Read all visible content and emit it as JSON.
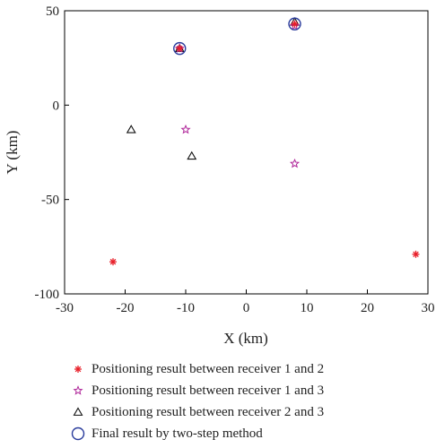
{
  "chart_data": {
    "type": "scatter",
    "xlabel": "X (km)",
    "ylabel": "Y (km)",
    "xlim": [
      -30,
      30
    ],
    "ylim": [
      -100,
      50
    ],
    "xticks": [
      -30,
      -20,
      -10,
      0,
      10,
      20,
      30
    ],
    "yticks": [
      -100,
      -50,
      0,
      50
    ],
    "grid": false,
    "legend_position": "bottom",
    "series": [
      {
        "name": "Positioning result between receiver 1 and 2",
        "marker": "asterisk",
        "color": "#e8202a",
        "points": [
          [
            -22,
            -83
          ],
          [
            28,
            -79
          ],
          [
            -11,
            30
          ],
          [
            8,
            43
          ]
        ]
      },
      {
        "name": "Positioning result between receiver 1 and 3",
        "marker": "star",
        "color": "#b0279a",
        "points": [
          [
            -10,
            -13
          ],
          [
            8,
            -31
          ],
          [
            -11,
            30
          ],
          [
            8,
            42
          ]
        ]
      },
      {
        "name": "Positioning result between receiver 2 and 3",
        "marker": "triangle",
        "color": "#111111",
        "points": [
          [
            -19,
            -13
          ],
          [
            -9,
            -27
          ],
          [
            -11,
            30
          ],
          [
            8,
            44
          ]
        ]
      },
      {
        "name": "Final result by two-step method",
        "marker": "circle",
        "color": "#2a3c9c",
        "points": [
          [
            -11,
            30
          ],
          [
            8,
            43
          ]
        ]
      }
    ]
  }
}
